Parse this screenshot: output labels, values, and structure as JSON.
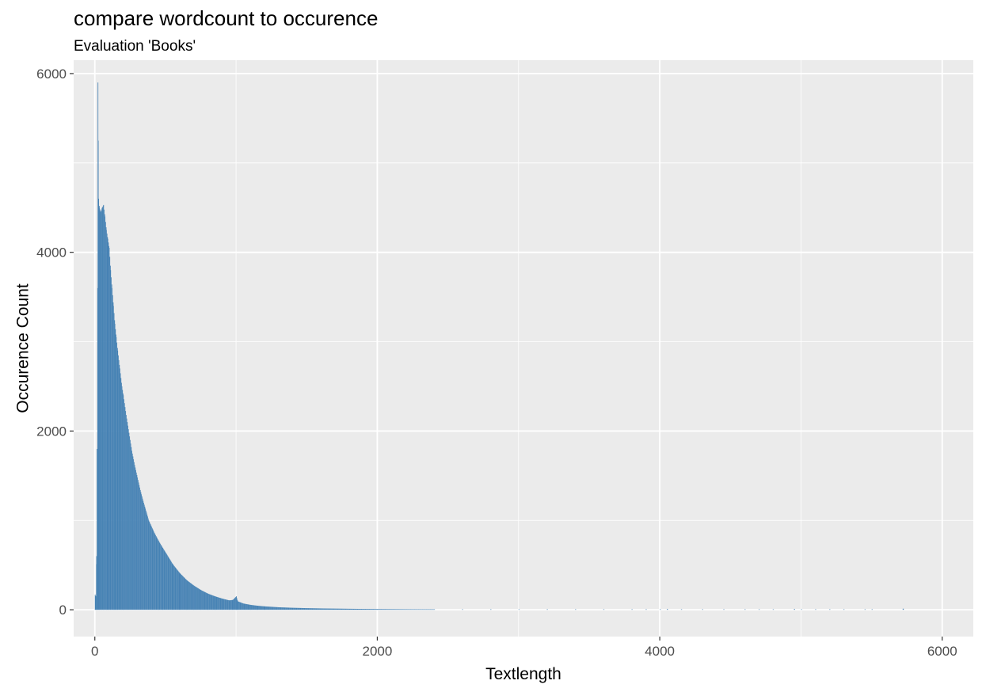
{
  "chart_data": {
    "type": "bar",
    "title": "compare wordcount to occurence",
    "subtitle": "Evaluation 'Books'",
    "xlabel": "Textlength",
    "ylabel": "Occurence Count",
    "xlim": [
      -150,
      6220
    ],
    "ylim": [
      -300,
      6150
    ],
    "x_ticks": [
      0,
      2000,
      4000,
      6000
    ],
    "y_ticks": [
      0,
      2000,
      4000,
      6000
    ],
    "grid": true,
    "bar_color": "#4682B4",
    "panel_color": "#EBEBEB",
    "grid_color": "#FFFFFF",
    "series": [
      {
        "points": [
          [
            0,
            170
          ],
          [
            5,
            150
          ],
          [
            10,
            600
          ],
          [
            14,
            1800
          ],
          [
            18,
            3600
          ],
          [
            20,
            5900
          ],
          [
            22,
            5250
          ],
          [
            25,
            4600
          ],
          [
            30,
            4500
          ],
          [
            40,
            4450
          ],
          [
            50,
            4500
          ],
          [
            60,
            4530
          ],
          [
            70,
            4400
          ],
          [
            80,
            4250
          ],
          [
            90,
            4150
          ],
          [
            100,
            4050
          ],
          [
            110,
            3800
          ],
          [
            120,
            3600
          ],
          [
            130,
            3400
          ],
          [
            140,
            3200
          ],
          [
            150,
            3050
          ],
          [
            160,
            2900
          ],
          [
            175,
            2700
          ],
          [
            190,
            2500
          ],
          [
            200,
            2400
          ],
          [
            220,
            2180
          ],
          [
            240,
            1980
          ],
          [
            260,
            1780
          ],
          [
            280,
            1620
          ],
          [
            300,
            1480
          ],
          [
            320,
            1340
          ],
          [
            340,
            1220
          ],
          [
            360,
            1110
          ],
          [
            380,
            1000
          ],
          [
            400,
            930
          ],
          [
            420,
            860
          ],
          [
            450,
            770
          ],
          [
            480,
            690
          ],
          [
            500,
            640
          ],
          [
            550,
            510
          ],
          [
            600,
            410
          ],
          [
            650,
            330
          ],
          [
            700,
            270
          ],
          [
            750,
            220
          ],
          [
            800,
            180
          ],
          [
            850,
            150
          ],
          [
            900,
            125
          ],
          [
            950,
            105
          ],
          [
            975,
            110
          ],
          [
            1000,
            150
          ],
          [
            1010,
            95
          ],
          [
            1050,
            70
          ],
          [
            1100,
            55
          ],
          [
            1150,
            45
          ],
          [
            1200,
            38
          ],
          [
            1300,
            28
          ],
          [
            1400,
            22
          ],
          [
            1500,
            18
          ],
          [
            1600,
            15
          ],
          [
            1800,
            11
          ],
          [
            2000,
            8
          ],
          [
            2200,
            6
          ],
          [
            2400,
            5
          ],
          [
            2600,
            4
          ],
          [
            2800,
            3
          ],
          [
            3000,
            3
          ],
          [
            3200,
            2
          ],
          [
            3400,
            2
          ],
          [
            3600,
            2
          ],
          [
            3800,
            2
          ],
          [
            3900,
            5
          ],
          [
            4000,
            2
          ],
          [
            4050,
            8
          ],
          [
            4150,
            2
          ],
          [
            4300,
            5
          ],
          [
            4450,
            3
          ],
          [
            4600,
            3
          ],
          [
            4700,
            5
          ],
          [
            4800,
            5
          ],
          [
            4950,
            8
          ],
          [
            5000,
            3
          ],
          [
            5100,
            3
          ],
          [
            5200,
            3
          ],
          [
            5300,
            5
          ],
          [
            5450,
            5
          ],
          [
            5500,
            3
          ],
          [
            5720,
            12
          ]
        ]
      }
    ]
  }
}
